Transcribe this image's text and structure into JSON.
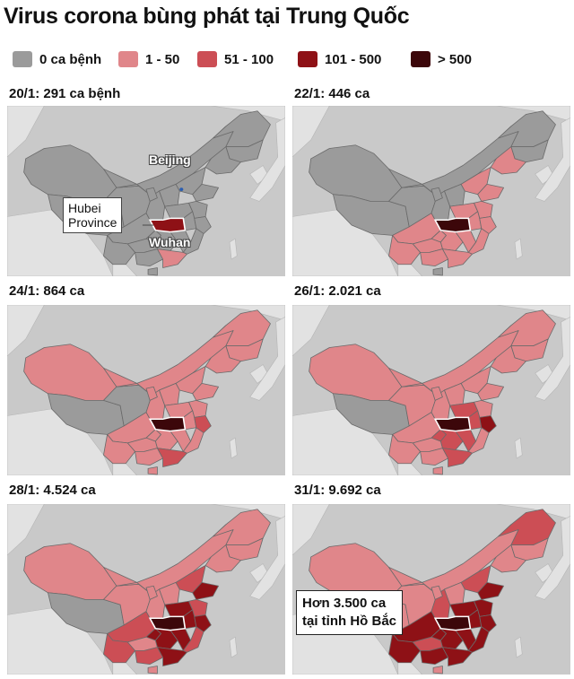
{
  "title": "Virus corona bùng phát tại Trung Quốc",
  "colors": {
    "sea": "#c9c9c9",
    "land_other": "#e2e2e2",
    "zero": "#9b9b9b",
    "c1_50": "#e0868a",
    "c51_100": "#cc4e55",
    "c101_500": "#8e1116",
    "c500p": "#3c070a",
    "border": "#6a6a6a"
  },
  "legend": [
    {
      "label": "0 ca bệnh",
      "color": "#9b9b9b"
    },
    {
      "label": "1 - 50",
      "color": "#e0868a"
    },
    {
      "label": "51 - 100",
      "color": "#cc4e55"
    },
    {
      "label": "101 - 500",
      "color": "#8e1116"
    },
    {
      "label": "> 500",
      "color": "#3c070a"
    }
  ],
  "panels": [
    {
      "date_label": "20/1: 291 ca bệnh"
    },
    {
      "date_label": "22/1: 446 ca"
    },
    {
      "date_label": "24/1: 864 ca"
    },
    {
      "date_label": "26/1: 2.021 ca"
    },
    {
      "date_label": "28/1: 4.524 ca"
    },
    {
      "date_label": "31/1: 9.692 ca"
    }
  ],
  "annotations": {
    "beijing": "Beijing",
    "hubei_line1": "Hubei",
    "hubei_line2": "Province",
    "wuhan": "Wuhan",
    "final_line1": "Hơn 3.500 ca",
    "final_line2": "tại tỉnh Hồ Bắc"
  }
}
